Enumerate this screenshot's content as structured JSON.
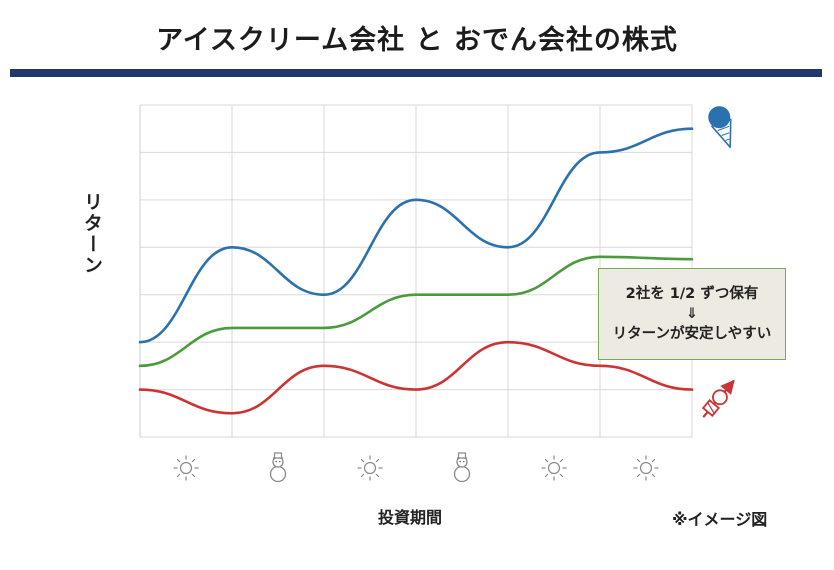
{
  "title": "アイスクリーム会社 と おでん会社の株式",
  "chart_data": {
    "type": "line",
    "title": "アイスクリーム会社 と おでん会社の株式",
    "xlabel": "投資期間",
    "ylabel": "リターン",
    "x": [
      0,
      1,
      2,
      3,
      4,
      5,
      6
    ],
    "ylim": [
      0,
      7
    ],
    "grid": true,
    "period_icons": [
      "sun-icon",
      "snowman-icon",
      "sun-icon",
      "snowman-icon",
      "sun-icon",
      "sun-icon"
    ],
    "series": [
      {
        "name": "",
        "color": "#2a71ad",
        "marker_icon": "ice-cream-icon",
        "values": [
          2.0,
          4.0,
          3.0,
          5.0,
          4.0,
          6.0,
          6.5
        ]
      },
      {
        "name": "",
        "color": "#4b9a3c",
        "values": [
          1.5,
          2.3,
          2.3,
          3.0,
          3.0,
          3.8,
          3.75
        ]
      },
      {
        "name": "",
        "color": "#cc3333",
        "marker_icon": "oden-icon",
        "values": [
          1.0,
          0.5,
          1.5,
          1.0,
          2.0,
          1.5,
          1.0
        ]
      }
    ]
  },
  "callout": {
    "line1": "2社を 1/2 ずつ保有",
    "line2": "⇓",
    "line3": "リターンが安定しやすい"
  },
  "note": "※イメージ図"
}
